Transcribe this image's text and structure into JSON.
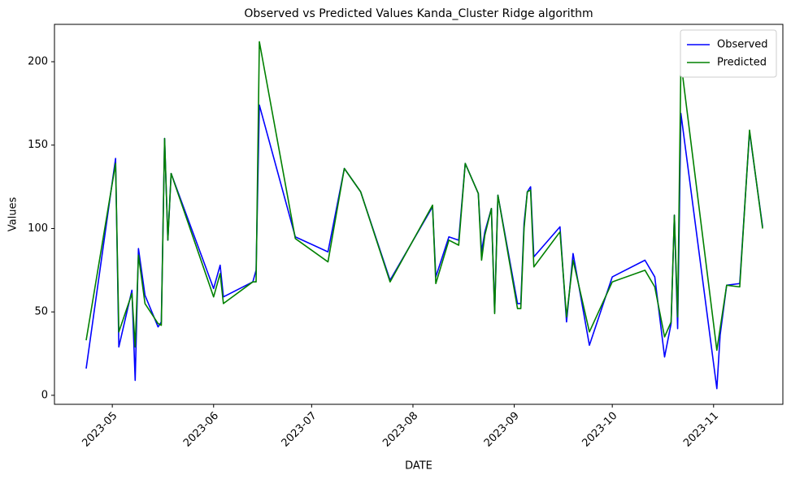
{
  "chart_data": {
    "type": "line",
    "title": "Observed vs Predicted Values Kanda_Cluster Ridge algorithm",
    "xlabel": "DATE",
    "ylabel": "Values",
    "x": [
      19470,
      19479,
      19480,
      19484,
      19485,
      19486,
      19488,
      19492,
      19493,
      19494,
      19495,
      19496,
      19509,
      19511,
      19512,
      19521,
      19522,
      19523,
      19534,
      19544,
      19549,
      19554,
      19563,
      19576,
      19577,
      19581,
      19584,
      19586,
      19590,
      19591,
      19592,
      19594,
      19595,
      19596,
      19602,
      19603,
      19604,
      19605,
      19606,
      19607,
      19615,
      19617,
      19619,
      19624,
      19631,
      19641,
      19644,
      19647,
      19649,
      19650,
      19651,
      19652,
      19663,
      19664,
      19666,
      19670,
      19673,
      19677
    ],
    "series": [
      {
        "name": "Observed",
        "color": "#0000ff",
        "values": [
          16,
          142,
          29,
          63,
          9,
          88,
          60,
          41,
          44,
          154,
          93,
          133,
          64,
          78,
          59,
          68,
          75,
          174,
          95,
          86,
          136,
          122,
          69,
          113,
          71,
          95,
          93,
          139,
          121,
          86,
          98,
          112,
          50,
          120,
          55,
          55,
          103,
          122,
          125,
          83,
          101,
          44,
          85,
          30,
          71,
          81,
          71,
          23,
          43,
          108,
          40,
          169,
          4,
          36,
          66,
          67,
          158,
          101
        ]
      },
      {
        "name": "Predicted",
        "color": "#008000",
        "values": [
          33,
          139,
          38,
          61,
          29,
          84,
          55,
          43,
          42,
          154,
          93,
          133,
          59,
          73,
          55,
          68,
          68,
          212,
          94,
          80,
          136,
          122,
          68,
          114,
          67,
          93,
          90,
          139,
          121,
          81,
          96,
          112,
          49,
          120,
          52,
          52,
          100,
          122,
          123,
          77,
          98,
          47,
          81,
          38,
          68,
          75,
          65,
          35,
          44,
          108,
          47,
          200,
          27,
          40,
          66,
          65,
          159,
          100
        ]
      }
    ],
    "xlim": [
      19460.3,
      19683.2
    ],
    "xticks": [
      {
        "value": 19478,
        "label": "2023-05"
      },
      {
        "value": 19509,
        "label": "2023-06"
      },
      {
        "value": 19539,
        "label": "2023-07"
      },
      {
        "value": 19570,
        "label": "2023-08"
      },
      {
        "value": 19601,
        "label": "2023-09"
      },
      {
        "value": 19631,
        "label": "2023-10"
      },
      {
        "value": 19662,
        "label": "2023-11"
      }
    ],
    "ylim": [
      -5.4,
      222.4
    ],
    "yticks": [
      0,
      50,
      100,
      150,
      200
    ],
    "grid": false,
    "legend": "upper-right"
  }
}
